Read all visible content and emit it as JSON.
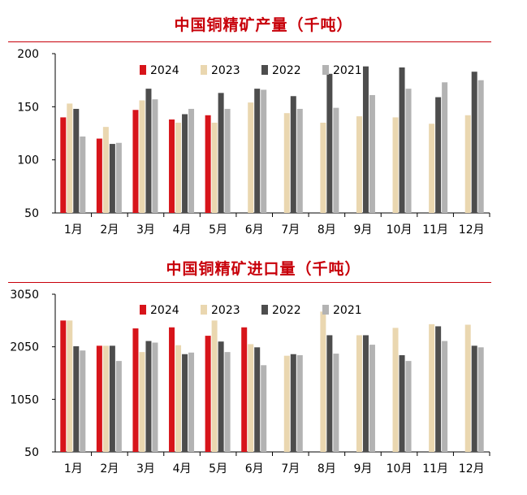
{
  "chart_data": [
    {
      "type": "bar",
      "title": "中国铜精矿产量（千吨）",
      "categories": [
        "1月",
        "2月",
        "3月",
        "4月",
        "5月",
        "6月",
        "7月",
        "8月",
        "9月",
        "10月",
        "11月",
        "12月"
      ],
      "ylim": [
        50,
        200
      ],
      "yticks": [
        50,
        100,
        150,
        200
      ],
      "legend_position": "top",
      "series": [
        {
          "name": "2024",
          "color": "#d7141a",
          "values": [
            140,
            120,
            147,
            138,
            142,
            null,
            null,
            null,
            null,
            null,
            null,
            null
          ]
        },
        {
          "name": "2023",
          "color": "#ead7b0",
          "values": [
            153,
            131,
            156,
            135,
            135,
            154,
            144,
            135,
            141,
            140,
            134,
            142
          ]
        },
        {
          "name": "2022",
          "color": "#4d4d4d",
          "values": [
            148,
            115,
            167,
            143,
            163,
            167,
            160,
            181,
            188,
            187,
            159,
            183
          ]
        },
        {
          "name": "2021",
          "color": "#b3b3b3",
          "values": [
            122,
            116,
            157,
            148,
            148,
            166,
            148,
            149,
            161,
            167,
            173,
            175
          ]
        }
      ]
    },
    {
      "type": "bar",
      "title": "中国铜精矿进口量（千吨）",
      "categories": [
        "1月",
        "2月",
        "3月",
        "4月",
        "5月",
        "6月",
        "7月",
        "8月",
        "9月",
        "10月",
        "11月",
        "12月"
      ],
      "ylim": [
        50,
        3050
      ],
      "yticks": [
        50,
        1050,
        2050,
        3050
      ],
      "legend_position": "top",
      "series": [
        {
          "name": "2024",
          "color": "#d7141a",
          "values": [
            2550,
            2070,
            2400,
            2420,
            2260,
            2420,
            null,
            null,
            null,
            null,
            null,
            null
          ]
        },
        {
          "name": "2023",
          "color": "#ead7b0",
          "values": [
            2550,
            2070,
            1950,
            2080,
            2550,
            2100,
            1880,
            2720,
            2270,
            2410,
            2480,
            2470
          ]
        },
        {
          "name": "2022",
          "color": "#4d4d4d",
          "values": [
            2060,
            2070,
            2160,
            1910,
            2150,
            2040,
            1910,
            2270,
            2270,
            1890,
            2440,
            2070
          ]
        },
        {
          "name": "2021",
          "color": "#b3b3b3",
          "values": [
            1980,
            1780,
            2130,
            1940,
            1950,
            1700,
            1890,
            1920,
            2090,
            1780,
            2160,
            2040
          ]
        }
      ]
    }
  ]
}
